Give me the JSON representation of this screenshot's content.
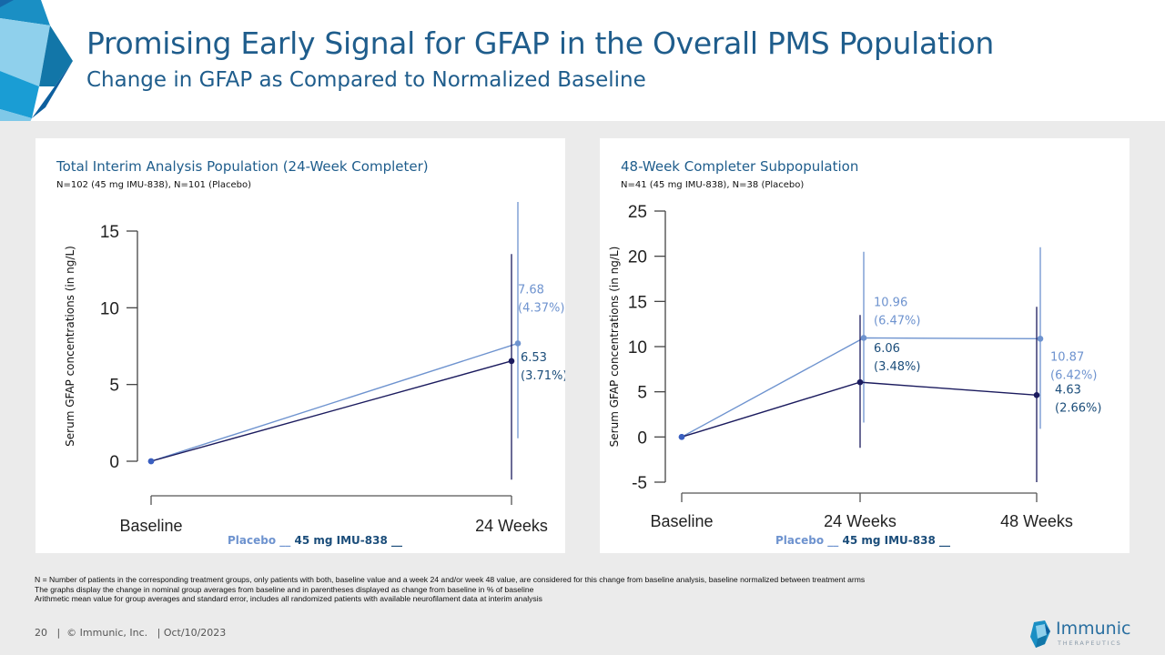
{
  "header": {
    "title": "Promising Early Signal for GFAP in the Overall PMS Population",
    "subtitle": "Change in GFAP as Compared to Normalized Baseline"
  },
  "colors": {
    "title_blue": "#1f5d8c",
    "placebo": "#6e93cf",
    "imu838": "#1b1b5e",
    "imu838_label": "#1b4d7a",
    "background_gray": "#ebebeb"
  },
  "legend": {
    "placebo_label": "Placebo",
    "imu_label": "45 mg IMU-838",
    "marker": "__"
  },
  "chart_data": [
    {
      "type": "line",
      "title": "Total Interim Analysis Population (24-Week Completer)",
      "subtitle": "N=102 (45 mg IMU-838), N=101 (Placebo)",
      "ylabel": "Serum GFAP concentrations (in ng/L)",
      "xlabel": "",
      "categories": [
        "Baseline",
        "24 Weeks"
      ],
      "ylim": [
        0,
        15
      ],
      "yticks": [
        0,
        5,
        10,
        15
      ],
      "grid": false,
      "legend_position": "bottom-center",
      "series": [
        {
          "name": "Placebo",
          "values": [
            0,
            7.68
          ],
          "labels": [
            null,
            {
              "value": "7.68",
              "pct": "(4.37%)"
            }
          ],
          "error_low": [
            null,
            1.5
          ],
          "error_high": [
            null,
            16.9
          ]
        },
        {
          "name": "45 mg IMU-838",
          "values": [
            0,
            6.53
          ],
          "labels": [
            null,
            {
              "value": "6.53",
              "pct": "(3.71%)"
            }
          ],
          "error_low": [
            null,
            -1.2
          ],
          "error_high": [
            null,
            13.5
          ]
        }
      ]
    },
    {
      "type": "line",
      "title": "48-Week Completer Subpopulation",
      "subtitle": "N=41 (45 mg IMU-838), N=38 (Placebo)",
      "ylabel": "Serum GFAP concentrations (in ng/L)",
      "xlabel": "",
      "categories": [
        "Baseline",
        "24 Weeks",
        "48 Weeks"
      ],
      "ylim": [
        -5,
        25
      ],
      "yticks": [
        -5,
        0,
        5,
        10,
        15,
        20,
        25
      ],
      "grid": false,
      "legend_position": "bottom-center",
      "series": [
        {
          "name": "Placebo",
          "values": [
            0,
            10.96,
            10.87
          ],
          "labels": [
            null,
            {
              "value": "10.96",
              "pct": "(6.47%)"
            },
            {
              "value": "10.87",
              "pct": "(6.42%)"
            }
          ],
          "error_low": [
            null,
            1.6,
            0.9
          ],
          "error_high": [
            null,
            20.5,
            21.0
          ]
        },
        {
          "name": "45 mg IMU-838",
          "values": [
            0,
            6.06,
            4.63
          ],
          "labels": [
            null,
            {
              "value": "6.06",
              "pct": "(3.48%)"
            },
            {
              "value": "4.63",
              "pct": "(2.66%)"
            }
          ],
          "error_low": [
            null,
            -1.2,
            -5.0
          ],
          "error_high": [
            null,
            13.5,
            14.4
          ]
        }
      ]
    }
  ],
  "notes": [
    "N = Number of patients in the corresponding treatment groups, only patients with both, baseline value and a week 24 and/or week 48 value, are considered for this change from baseline analysis, baseline normalized between treatment arms",
    "The graphs display the change in nominal group averages from baseline and in parentheses displayed as change from baseline in % of baseline",
    "Arithmetic mean value for group averages and standard error, includes all randomized patients with available neurofilament data at interim analysis"
  ],
  "footer": {
    "page": "20",
    "copyright": "© Immunic, Inc.",
    "date": "Oct/10/2023",
    "text": "20   |  © Immunic, Inc.   | Oct/10/2023"
  },
  "logo": {
    "name": "Immunic",
    "tagline": "THERAPEUTICS",
    "icon": "immunic-crystal-icon"
  }
}
